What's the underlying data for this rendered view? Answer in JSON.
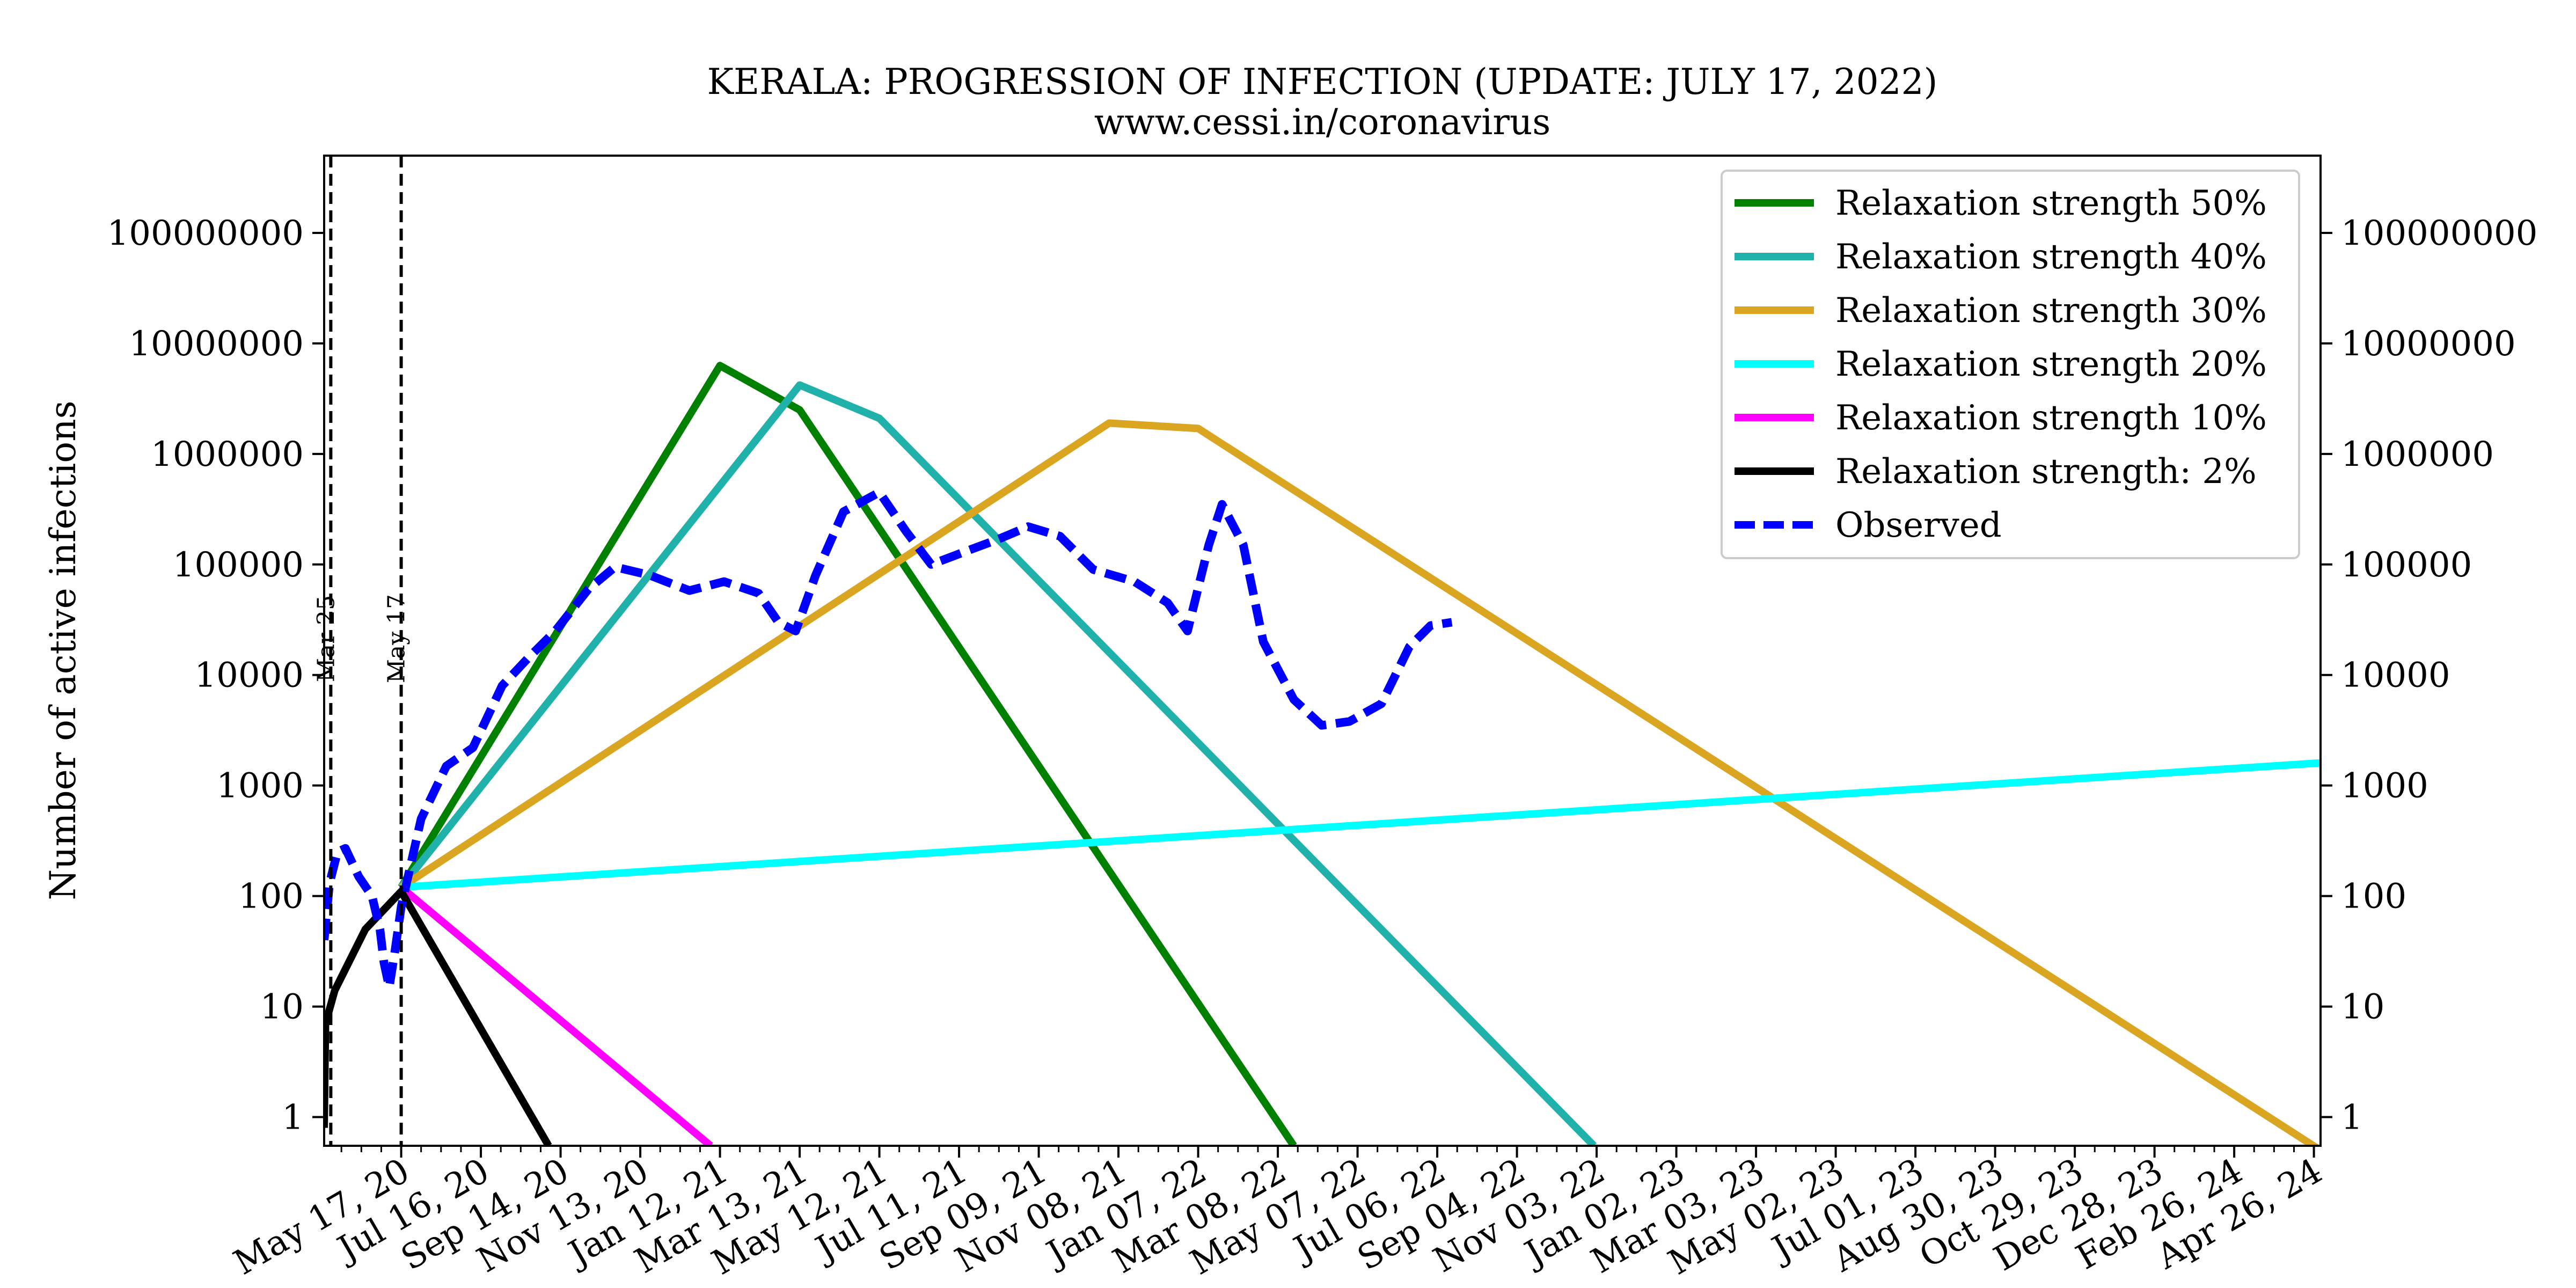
{
  "chart_data": {
    "type": "line",
    "title": "KERALA: PROGRESSION OF INFECTION (UPDATE: JULY 17, 2022)",
    "subtitle": "www.cessi.in/coronavirus",
    "ylabel": "Number of active infections",
    "xlabel": "",
    "yscale": "log",
    "ylim": [
      0.55,
      500000000
    ],
    "xlim": [
      "2020-03-20",
      "2024-05-01"
    ],
    "grid": false,
    "legend_position": "top-right",
    "y_tick_labels": [
      "1",
      "10",
      "100",
      "1000",
      "10000",
      "100000",
      "1000000",
      "10000000",
      "100000000"
    ],
    "y_tick_values": [
      1,
      10,
      100,
      1000,
      10000,
      100000,
      1000000,
      10000000,
      100000000
    ],
    "x_tick_labels": [
      "May 17, 20",
      "Jul 16, 20",
      "Sep 14, 20",
      "Nov 13, 20",
      "Jan 12, 21",
      "Mar 13, 21",
      "May 12, 21",
      "Jul 11, 21",
      "Sep 09, 21",
      "Nov 08, 21",
      "Jan 07, 22",
      "Mar 08, 22",
      "May 07, 22",
      "Jul 06, 22",
      "Sep 04, 22",
      "Nov 03, 22",
      "Jan 02, 23",
      "Mar 03, 23",
      "May 02, 23",
      "Jul 01, 23",
      "Aug 30, 23",
      "Oct 29, 23",
      "Dec 28, 23",
      "Feb 26, 24",
      "Apr 26, 24"
    ],
    "x_tick_dates": [
      "2020-05-17",
      "2020-07-16",
      "2020-09-14",
      "2020-11-13",
      "2021-01-12",
      "2021-03-13",
      "2021-05-12",
      "2021-07-11",
      "2021-09-09",
      "2021-11-08",
      "2022-01-07",
      "2022-03-08",
      "2022-05-07",
      "2022-07-06",
      "2022-09-04",
      "2022-11-03",
      "2023-01-02",
      "2023-03-03",
      "2023-05-02",
      "2023-07-01",
      "2023-08-30",
      "2023-10-29",
      "2023-12-28",
      "2024-02-26",
      "2024-04-26"
    ],
    "vertical_lines": [
      {
        "date": "2020-03-25",
        "label": "Mar 25"
      },
      {
        "date": "2020-05-17",
        "label": "May 17"
      }
    ],
    "series": [
      {
        "name": "Relaxation strength 50%",
        "color": "#008000",
        "style": "solid",
        "points": [
          [
            "2020-05-17",
            120
          ],
          [
            "2021-01-12",
            6300000
          ],
          [
            "2021-03-13",
            2500000
          ],
          [
            "2022-03-20",
            0.55
          ]
        ]
      },
      {
        "name": "Relaxation strength 40%",
        "color": "#20b2aa",
        "style": "solid",
        "points": [
          [
            "2020-05-17",
            120
          ],
          [
            "2021-03-13",
            4200000
          ],
          [
            "2021-05-12",
            2100000
          ],
          [
            "2022-11-01",
            0.55
          ]
        ]
      },
      {
        "name": "Relaxation strength 30%",
        "color": "#daa520",
        "style": "solid",
        "points": [
          [
            "2020-05-17",
            120
          ],
          [
            "2021-11-01",
            1900000
          ],
          [
            "2022-01-07",
            1700000
          ],
          [
            "2024-05-01",
            0.5
          ]
        ]
      },
      {
        "name": "Relaxation strength 20%",
        "color": "#00ffff",
        "style": "solid",
        "points": [
          [
            "2020-05-17",
            120
          ],
          [
            "2024-05-01",
            1600
          ]
        ]
      },
      {
        "name": "Relaxation strength 10%",
        "color": "#ff00ff",
        "style": "solid",
        "points": [
          [
            "2020-05-17",
            120
          ],
          [
            "2021-01-05",
            0.55
          ]
        ]
      },
      {
        "name": "Relaxation strength: 2%",
        "color": "#000000",
        "style": "solid",
        "points": [
          [
            "2020-03-20",
            0.8
          ],
          [
            "2020-03-21",
            7
          ],
          [
            "2020-03-28",
            14
          ],
          [
            "2020-04-20",
            50
          ],
          [
            "2020-05-17",
            110
          ],
          [
            "2020-09-05",
            0.55
          ]
        ]
      },
      {
        "name": "Observed",
        "color": "#0000ff",
        "style": "dashed",
        "points": [
          [
            "2020-03-20",
            40
          ],
          [
            "2020-03-24",
            130
          ],
          [
            "2020-03-30",
            250
          ],
          [
            "2020-04-05",
            270
          ],
          [
            "2020-04-15",
            150
          ],
          [
            "2020-04-25",
            100
          ],
          [
            "2020-05-01",
            50
          ],
          [
            "2020-05-04",
            25
          ],
          [
            "2020-05-08",
            15
          ],
          [
            "2020-05-12",
            30
          ],
          [
            "2020-05-17",
            80
          ],
          [
            "2020-06-01",
            500
          ],
          [
            "2020-06-20",
            1500
          ],
          [
            "2020-07-10",
            2200
          ],
          [
            "2020-08-01",
            8000
          ],
          [
            "2020-08-20",
            14000
          ],
          [
            "2020-09-10",
            25000
          ],
          [
            "2020-10-05",
            60000
          ],
          [
            "2020-10-25",
            95000
          ],
          [
            "2020-11-20",
            80000
          ],
          [
            "2020-12-20",
            58000
          ],
          [
            "2021-01-15",
            70000
          ],
          [
            "2021-02-10",
            55000
          ],
          [
            "2021-02-25",
            30000
          ],
          [
            "2021-03-10",
            25000
          ],
          [
            "2021-03-25",
            80000
          ],
          [
            "2021-04-15",
            300000
          ],
          [
            "2021-05-12",
            450000
          ],
          [
            "2021-06-01",
            200000
          ],
          [
            "2021-06-20",
            100000
          ],
          [
            "2021-07-15",
            130000
          ],
          [
            "2021-08-10",
            170000
          ],
          [
            "2021-09-01",
            220000
          ],
          [
            "2021-09-25",
            180000
          ],
          [
            "2021-10-20",
            90000
          ],
          [
            "2021-11-20",
            70000
          ],
          [
            "2021-12-15",
            45000
          ],
          [
            "2021-12-30",
            25000
          ],
          [
            "2022-01-15",
            150000
          ],
          [
            "2022-01-25",
            350000
          ],
          [
            "2022-02-10",
            150000
          ],
          [
            "2022-02-25",
            20000
          ],
          [
            "2022-03-20",
            6000
          ],
          [
            "2022-04-10",
            3500
          ],
          [
            "2022-05-01",
            3800
          ],
          [
            "2022-05-25",
            5500
          ],
          [
            "2022-06-15",
            18000
          ],
          [
            "2022-07-01",
            28000
          ],
          [
            "2022-07-17",
            30000
          ]
        ]
      }
    ]
  }
}
